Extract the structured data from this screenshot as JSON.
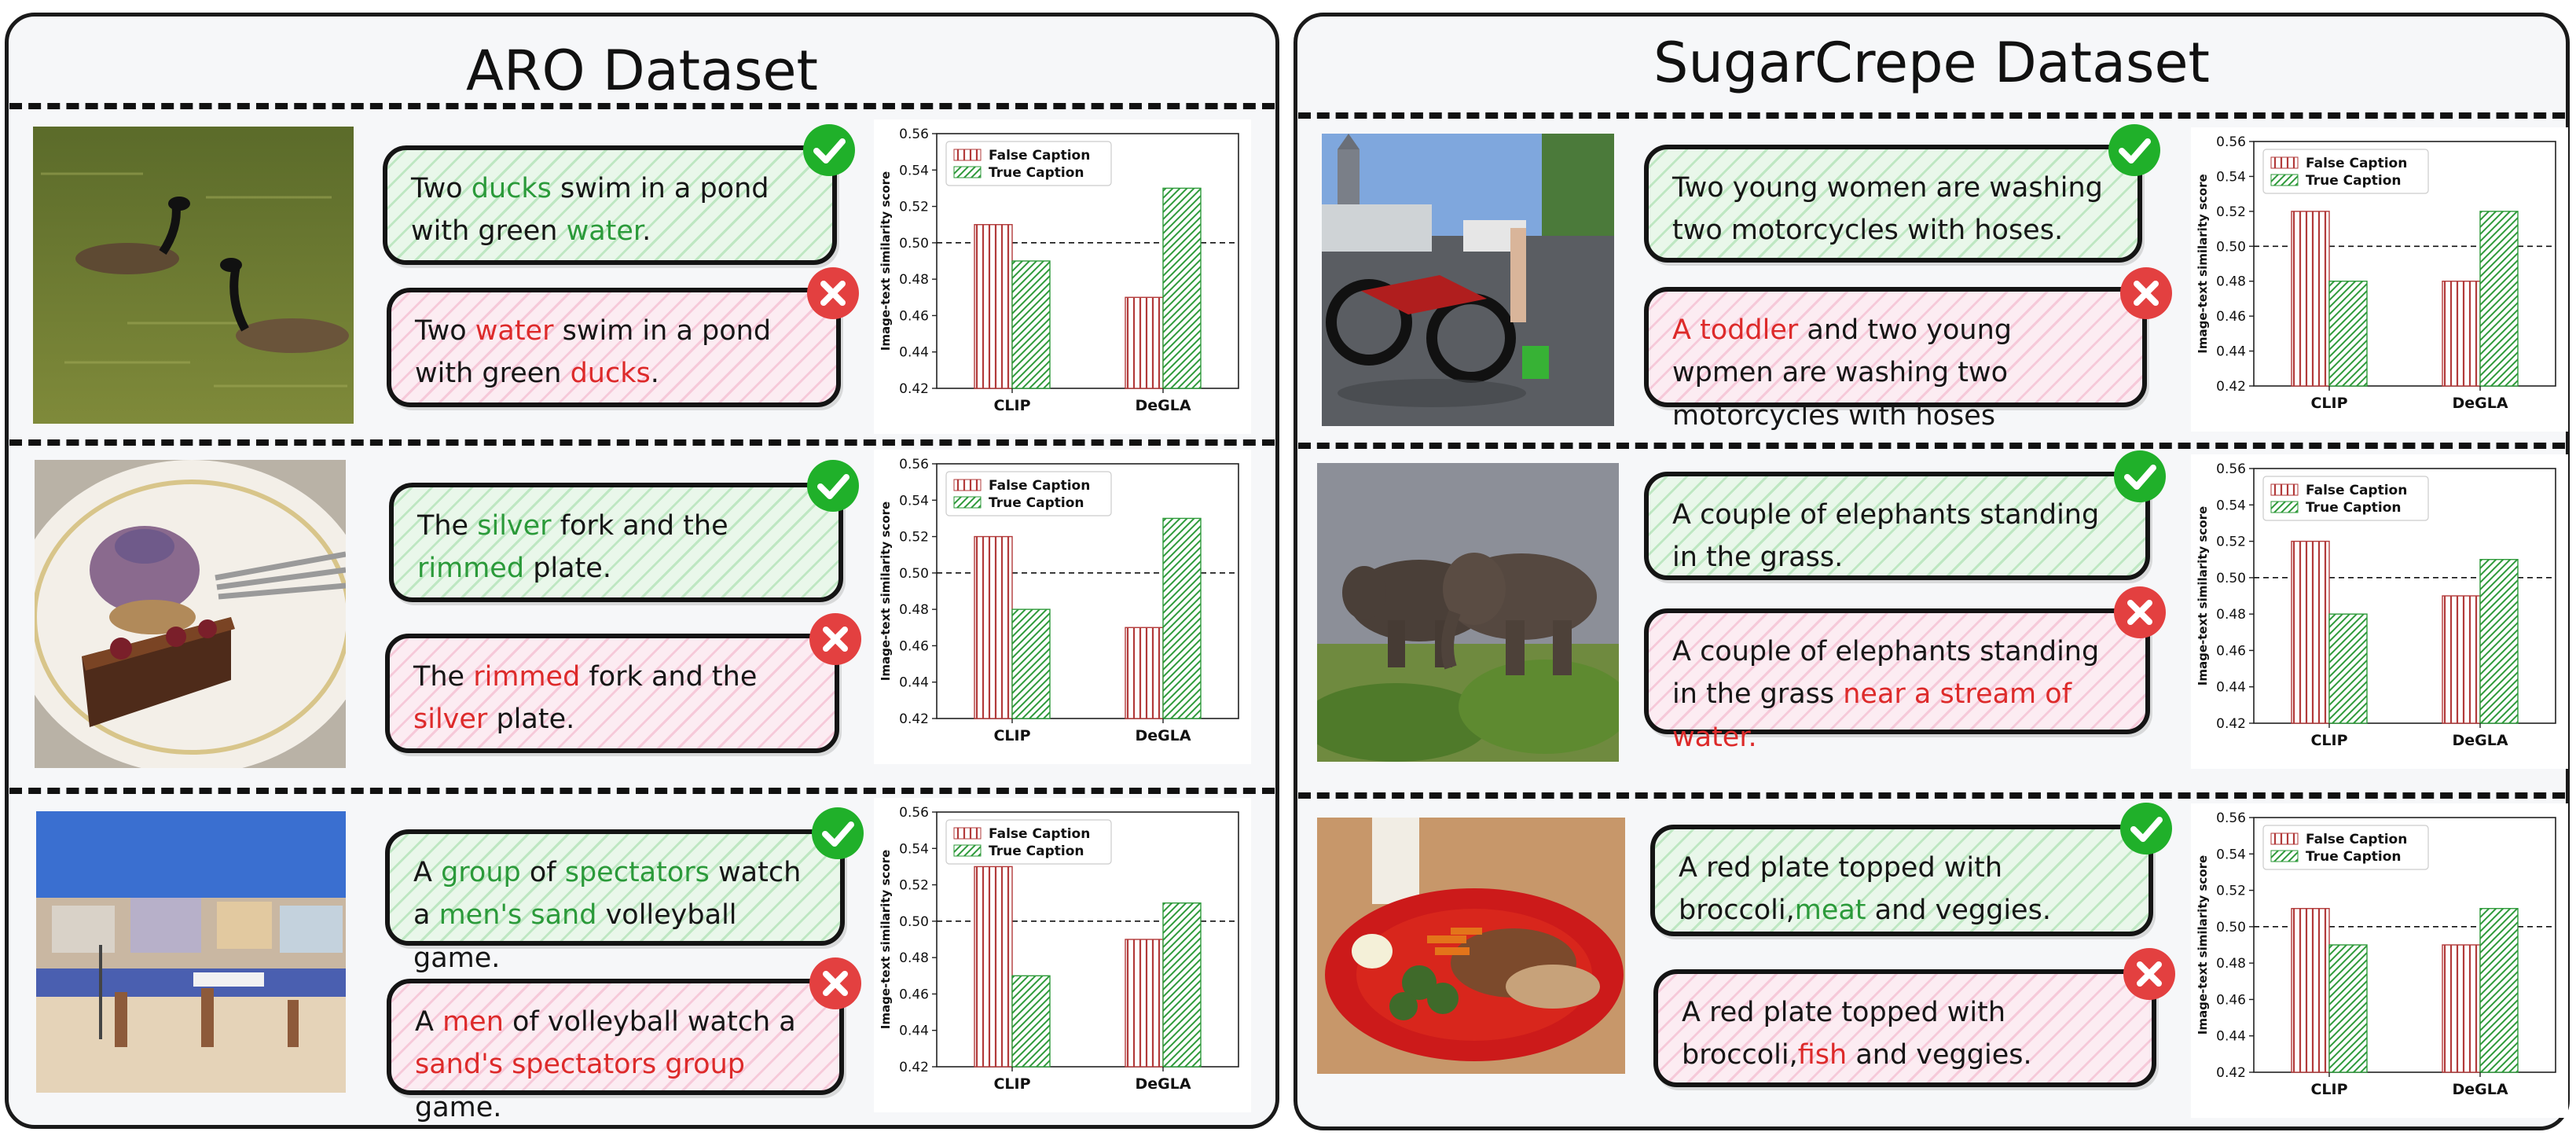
{
  "colors": {
    "false_bar_edge": "#b23a3a",
    "true_bar_edge": "#2e9a3a",
    "highlight_true": "#2b9a3a",
    "highlight_false": "#dd2a2a",
    "check_badge": "#20b02a",
    "cross_badge": "#e34040"
  },
  "panels": [
    {
      "title": "ARO Dataset",
      "rows": [
        {
          "image_icon": "geese-in-pond-photo",
          "true_caption": [
            {
              "text": "Two "
            },
            {
              "text": "ducks",
              "hl": true
            },
            {
              "text": " swim in a pond with green "
            },
            {
              "text": "water",
              "hl": true
            },
            {
              "text": "."
            }
          ],
          "false_caption": [
            {
              "text": "Two "
            },
            {
              "text": "water",
              "hl": true
            },
            {
              "text": " swim in a pond with green "
            },
            {
              "text": "ducks",
              "hl": true
            },
            {
              "text": "."
            }
          ]
        },
        {
          "image_icon": "dessert-on-plate-photo",
          "true_caption": [
            {
              "text": "The "
            },
            {
              "text": "silver",
              "hl": true
            },
            {
              "text": " fork and the "
            },
            {
              "text": "rimmed",
              "hl": true
            },
            {
              "text": " plate."
            }
          ],
          "false_caption": [
            {
              "text": "The "
            },
            {
              "text": "rimmed",
              "hl": true
            },
            {
              "text": " fork and the "
            },
            {
              "text": "silver",
              "hl": true
            },
            {
              "text": " plate."
            }
          ]
        },
        {
          "image_icon": "beach-volleyball-photo",
          "true_caption": [
            {
              "text": "A "
            },
            {
              "text": "group",
              "hl": true
            },
            {
              "text": " of "
            },
            {
              "text": "spectators",
              "hl": true
            },
            {
              "text": " watch a "
            },
            {
              "text": "men's sand",
              "hl": true
            },
            {
              "text": " volleyball game."
            }
          ],
          "false_caption": [
            {
              "text": "A "
            },
            {
              "text": "men",
              "hl": true
            },
            {
              "text": " of volleyball watch a "
            },
            {
              "text": "sand's spectators group",
              "hl": true
            },
            {
              "text": " game."
            }
          ]
        }
      ]
    },
    {
      "title": "SugarCrepe Dataset",
      "rows": [
        {
          "image_icon": "motorcycle-washing-photo",
          "true_caption": [
            {
              "text": "Two young women are washing two motorcycles with hoses."
            }
          ],
          "false_caption": [
            {
              "text": "A toddler",
              "hl": true
            },
            {
              "text": "  and two young wpmen are washing two motorcycles with hoses"
            }
          ]
        },
        {
          "image_icon": "elephants-in-grass-photo",
          "true_caption": [
            {
              "text": "A couple of elephants standing in the grass."
            }
          ],
          "false_caption": [
            {
              "text": "A couple of elephants standing in the grass "
            },
            {
              "text": "near a stream of water.",
              "hl": true
            }
          ]
        },
        {
          "image_icon": "red-plate-food-photo",
          "true_caption": [
            {
              "text": "A red plate topped with broccoli,"
            },
            {
              "text": "meat",
              "hl": true
            },
            {
              "text": " and veggies."
            }
          ],
          "false_caption": [
            {
              "text": "A red plate topped with broccoli,"
            },
            {
              "text": "fish",
              "hl": true
            },
            {
              "text": " and veggies."
            }
          ]
        }
      ]
    }
  ],
  "chart_data": [
    {
      "type": "bar",
      "categories": [
        "CLIP",
        "DeGLA"
      ],
      "series": [
        {
          "name": "False Caption",
          "values": [
            0.51,
            0.47
          ]
        },
        {
          "name": "True Caption",
          "values": [
            0.49,
            0.53
          ]
        }
      ],
      "ylabel": "Image-text similarity score",
      "ylim": [
        0.42,
        0.56
      ],
      "yticks": [
        "0.42",
        "0.44",
        "0.46",
        "0.48",
        "0.50",
        "0.52",
        "0.54",
        "0.56"
      ],
      "reference_line": 0.5,
      "legend": "top-left"
    },
    {
      "type": "bar",
      "categories": [
        "CLIP",
        "DeGLA"
      ],
      "series": [
        {
          "name": "False Caption",
          "values": [
            0.52,
            0.47
          ]
        },
        {
          "name": "True Caption",
          "values": [
            0.48,
            0.53
          ]
        }
      ],
      "ylabel": "Image-text similarity score",
      "ylim": [
        0.42,
        0.56
      ],
      "yticks": [
        "0.42",
        "0.44",
        "0.46",
        "0.48",
        "0.50",
        "0.52",
        "0.54",
        "0.56"
      ],
      "reference_line": 0.5,
      "legend": "top-left"
    },
    {
      "type": "bar",
      "categories": [
        "CLIP",
        "DeGLA"
      ],
      "series": [
        {
          "name": "False Caption",
          "values": [
            0.53,
            0.49
          ]
        },
        {
          "name": "True Caption",
          "values": [
            0.47,
            0.51
          ]
        }
      ],
      "ylabel": "Image-text similarity score",
      "ylim": [
        0.42,
        0.56
      ],
      "yticks": [
        "0.42",
        "0.44",
        "0.46",
        "0.48",
        "0.50",
        "0.52",
        "0.54",
        "0.56"
      ],
      "reference_line": 0.5,
      "legend": "top-left"
    },
    {
      "type": "bar",
      "categories": [
        "CLIP",
        "DeGLA"
      ],
      "series": [
        {
          "name": "False Caption",
          "values": [
            0.52,
            0.48
          ]
        },
        {
          "name": "True Caption",
          "values": [
            0.48,
            0.52
          ]
        }
      ],
      "ylabel": "Image-text similarity score",
      "ylim": [
        0.42,
        0.56
      ],
      "yticks": [
        "0.42",
        "0.44",
        "0.46",
        "0.48",
        "0.50",
        "0.52",
        "0.54",
        "0.56"
      ],
      "reference_line": 0.5,
      "legend": "top-left"
    },
    {
      "type": "bar",
      "categories": [
        "CLIP",
        "DeGLA"
      ],
      "series": [
        {
          "name": "False Caption",
          "values": [
            0.52,
            0.49
          ]
        },
        {
          "name": "True Caption",
          "values": [
            0.48,
            0.51
          ]
        }
      ],
      "ylabel": "Image-text similarity score",
      "ylim": [
        0.42,
        0.56
      ],
      "yticks": [
        "0.42",
        "0.44",
        "0.46",
        "0.48",
        "0.50",
        "0.52",
        "0.54",
        "0.56"
      ],
      "reference_line": 0.5,
      "legend": "top-left"
    },
    {
      "type": "bar",
      "categories": [
        "CLIP",
        "DeGLA"
      ],
      "series": [
        {
          "name": "False Caption",
          "values": [
            0.51,
            0.49
          ]
        },
        {
          "name": "True Caption",
          "values": [
            0.49,
            0.51
          ]
        }
      ],
      "ylabel": "Image-text similarity score",
      "ylim": [
        0.42,
        0.56
      ],
      "yticks": [
        "0.42",
        "0.44",
        "0.46",
        "0.48",
        "0.50",
        "0.52",
        "0.54",
        "0.56"
      ],
      "reference_line": 0.5,
      "legend": "top-left"
    }
  ]
}
